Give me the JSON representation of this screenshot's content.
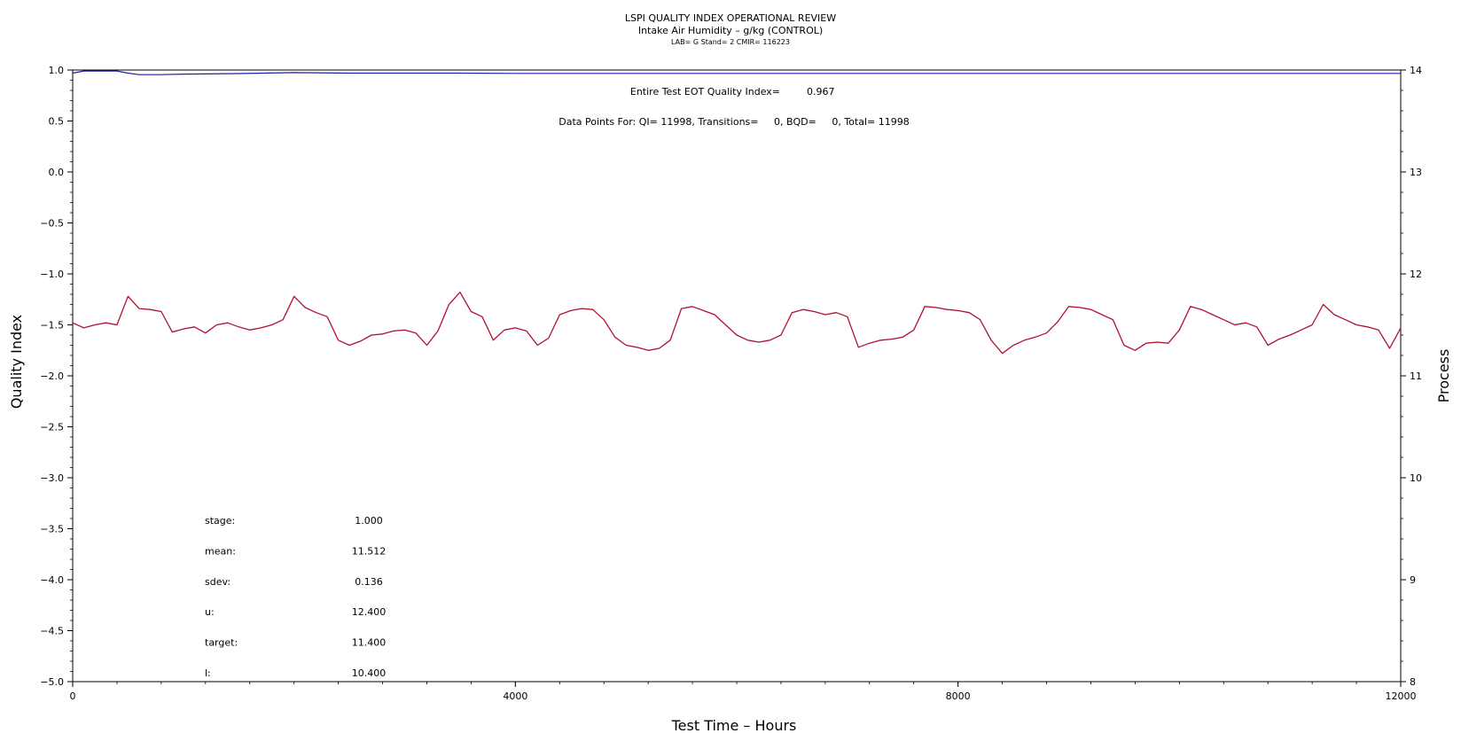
{
  "title": "LSPI QUALITY INDEX OPERATIONAL REVIEW",
  "subtitle": "Intake Air Humidity – g/kg (CONTROL)",
  "subtitle2": "LAB= G Stand= 2 CMIR= 116223",
  "annotations": {
    "eot_label": "Entire Test EOT Quality Index=",
    "eot_value": "0.967",
    "points_line": "Data Points For: QI= 11998, Transitions=     0, BQD=     0, Total= 11998"
  },
  "stats": [
    {
      "label": "stage:",
      "value": "1.000"
    },
    {
      "label": "mean:",
      "value": "11.512"
    },
    {
      "label": "sdev:",
      "value": "0.136"
    },
    {
      "label": "u:",
      "value": "12.400"
    },
    {
      "label": "target:",
      "value": "11.400"
    },
    {
      "label": "l:",
      "value": "10.400"
    }
  ],
  "colors": {
    "quality_index": "#1f1fa8",
    "process": "#b01030",
    "axis": "#000000"
  },
  "chart_data": {
    "type": "line",
    "title": "LSPI QUALITY INDEX OPERATIONAL REVIEW",
    "subtitle": "Intake Air Humidity – g/kg (CONTROL)",
    "xlabel": "Test Time – Hours",
    "ylabel": "Quality Index",
    "y2label": "Process",
    "xlim": [
      0,
      12000
    ],
    "ylim": [
      -5.0,
      1.0
    ],
    "y2lim": [
      8,
      14
    ],
    "xticks": [
      "0",
      "4000",
      "8000",
      "12000"
    ],
    "yticks": [
      "1.0",
      "0.5",
      "0.0",
      "-0.5",
      "-1.0",
      "-1.5",
      "-2.0",
      "-2.5",
      "-3.0",
      "-3.5",
      "-4.0",
      "-4.5",
      "-5.0"
    ],
    "y2ticks": [
      "14",
      "13",
      "12",
      "11",
      "10",
      "9",
      "8"
    ],
    "grid": false,
    "series": [
      {
        "axis": "left",
        "x": [
          0,
          100,
          300,
          400,
          500,
          600,
          800,
          1000,
          1500,
          2000,
          2500,
          3000,
          3500,
          4000,
          5000,
          6000,
          7000,
          8000,
          9000,
          10000,
          11000,
          12000
        ],
        "values": [
          0.97,
          0.99,
          0.99,
          0.99,
          0.97,
          0.955,
          0.955,
          0.96,
          0.965,
          0.975,
          0.97,
          0.97,
          0.97,
          0.967,
          0.967,
          0.967,
          0.967,
          0.967,
          0.967,
          0.967,
          0.967,
          0.967
        ]
      },
      {
        "axis": "right",
        "x": [
          0,
          100,
          200,
          300,
          400,
          500,
          600,
          700,
          800,
          900,
          1000,
          1100,
          1200,
          1300,
          1400,
          1500,
          1600,
          1700,
          1800,
          1900,
          2000,
          2100,
          2200,
          2300,
          2400,
          2500,
          2600,
          2700,
          2800,
          2900,
          3000,
          3100,
          3200,
          3300,
          3400,
          3500,
          3600,
          3700,
          3800,
          3900,
          4000,
          4100,
          4200,
          4300,
          4400,
          4500,
          4600,
          4700,
          4800,
          4900,
          5000,
          5100,
          5200,
          5300,
          5400,
          5500,
          5600,
          5700,
          5800,
          5900,
          6000,
          6100,
          6200,
          6300,
          6400,
          6500,
          6600,
          6700,
          6800,
          6900,
          7000,
          7100,
          7200,
          7300,
          7400,
          7500,
          7600,
          7700,
          7800,
          7900,
          8000,
          8100,
          8200,
          8300,
          8400,
          8500,
          8600,
          8700,
          8800,
          8900,
          9000,
          9100,
          9200,
          9300,
          9400,
          9500,
          9600,
          9700,
          9800,
          9900,
          10000,
          10100,
          10200,
          10300,
          10400,
          10500,
          10600,
          10700,
          10800,
          10900,
          11000,
          11100,
          11200,
          11300,
          11400,
          11500,
          11600,
          11700,
          11800,
          11900,
          12000
        ],
        "values": [
          11.52,
          11.47,
          11.5,
          11.52,
          11.5,
          11.78,
          11.66,
          11.65,
          11.63,
          11.43,
          11.46,
          11.48,
          11.42,
          11.5,
          11.52,
          11.48,
          11.45,
          11.47,
          11.5,
          11.55,
          11.78,
          11.67,
          11.62,
          11.58,
          11.35,
          11.3,
          11.34,
          11.4,
          11.41,
          11.44,
          11.45,
          11.42,
          11.3,
          11.44,
          11.7,
          11.82,
          11.63,
          11.58,
          11.35,
          11.45,
          11.47,
          11.44,
          11.3,
          11.37,
          11.6,
          11.64,
          11.66,
          11.65,
          11.55,
          11.38,
          11.3,
          11.28,
          11.25,
          11.27,
          11.35,
          11.66,
          11.68,
          11.64,
          11.6,
          11.5,
          11.4,
          11.35,
          11.33,
          11.35,
          11.4,
          11.62,
          11.65,
          11.63,
          11.6,
          11.62,
          11.58,
          11.28,
          11.32,
          11.35,
          11.36,
          11.38,
          11.45,
          11.68,
          11.67,
          11.65,
          11.64,
          11.62,
          11.55,
          11.35,
          11.22,
          11.3,
          11.35,
          11.38,
          11.42,
          11.53,
          11.68,
          11.67,
          11.65,
          11.6,
          11.55,
          11.3,
          11.25,
          11.32,
          11.33,
          11.32,
          11.45,
          11.68,
          11.65,
          11.6,
          11.55,
          11.5,
          11.52,
          11.48,
          11.3,
          11.36,
          11.4,
          11.45,
          11.5,
          11.7,
          11.6,
          11.55,
          11.5,
          11.48,
          11.45,
          11.27,
          11.47
        ]
      }
    ]
  }
}
